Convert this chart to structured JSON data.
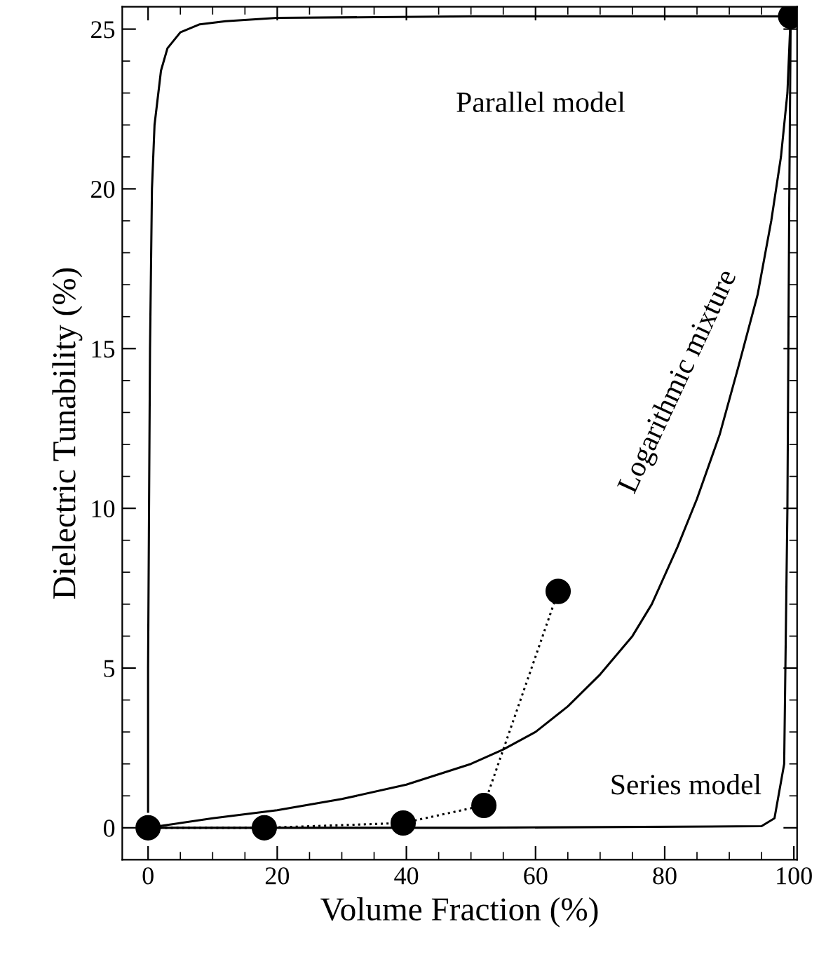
{
  "chart_data": {
    "type": "line",
    "xlabel": "Volume Fraction (%)",
    "ylabel": "Dielectric Tunability (%)",
    "xlim": [
      -4,
      100.5
    ],
    "ylim": [
      -1,
      25.7
    ],
    "xticks": [
      0,
      {
        "value": 5,
        "label": null
      },
      {
        "value": 10,
        "label": null
      },
      {
        "value": 15,
        "label": null
      },
      20,
      {
        "value": 25,
        "label": null
      },
      {
        "value": 30,
        "label": null
      },
      {
        "value": 35,
        "label": null
      },
      40,
      {
        "value": 45,
        "label": null
      },
      {
        "value": 50,
        "label": null
      },
      {
        "value": 55,
        "label": null
      },
      60,
      {
        "value": 65,
        "label": null
      },
      {
        "value": 70,
        "label": null
      },
      {
        "value": 75,
        "label": null
      },
      80,
      {
        "value": 85,
        "label": null
      },
      {
        "value": 90,
        "label": null
      },
      {
        "value": 95,
        "label": null
      },
      100
    ],
    "yticks": [
      0,
      {
        "value": 1,
        "label": null
      },
      {
        "value": 2,
        "label": null
      },
      {
        "value": 3,
        "label": null
      },
      {
        "value": 4,
        "label": null
      },
      5,
      {
        "value": 6,
        "label": null
      },
      {
        "value": 7,
        "label": null
      },
      {
        "value": 8,
        "label": null
      },
      {
        "value": 9,
        "label": null
      },
      10,
      {
        "value": 11,
        "label": null
      },
      {
        "value": 12,
        "label": null
      },
      {
        "value": 13,
        "label": null
      },
      {
        "value": 14,
        "label": null
      },
      15,
      {
        "value": 16,
        "label": null
      },
      {
        "value": 17,
        "label": null
      },
      {
        "value": 18,
        "label": null
      },
      {
        "value": 19,
        "label": null
      },
      20,
      {
        "value": 21,
        "label": null
      },
      {
        "value": 22,
        "label": null
      },
      {
        "value": 23,
        "label": null
      },
      {
        "value": 24,
        "label": null
      },
      25
    ],
    "series": [
      {
        "color": "#000000",
        "line_style": "solid",
        "x": [
          0,
          0,
          0.3,
          0.6,
          1,
          2,
          3,
          5,
          8,
          12,
          20,
          50,
          99
        ],
        "values": [
          0.5,
          5,
          15,
          20,
          22,
          23.7,
          24.4,
          24.9,
          25.15,
          25.25,
          25.35,
          25.4,
          25.4
        ]
      },
      {
        "color": "#000000",
        "line_style": "solid",
        "x": [
          0,
          10,
          20,
          30,
          40,
          50,
          55,
          60,
          65,
          70,
          75,
          78,
          82,
          85,
          88.5,
          91.5,
          94.4,
          96.5,
          98,
          99,
          99.5
        ],
        "values": [
          0,
          0.3,
          0.55,
          0.9,
          1.35,
          2.0,
          2.45,
          3.0,
          3.8,
          4.8,
          6.0,
          7.0,
          8.8,
          10.3,
          12.3,
          14.5,
          16.7,
          19,
          21,
          23,
          25.4
        ]
      },
      {
        "color": "#000000",
        "line_style": "solid",
        "x": [
          0,
          50,
          95,
          97,
          98.5,
          99,
          99.3,
          99.5
        ],
        "values": [
          0,
          0,
          0.05,
          0.3,
          2,
          10,
          20,
          25.2
        ]
      },
      {
        "color": "#000000",
        "line_style": "dotted",
        "marker": "circle",
        "x": [
          0,
          18,
          39.5,
          52,
          63.5
        ],
        "values": [
          0,
          0,
          0.15,
          0.7,
          7.4
        ]
      },
      {
        "color": "#000000",
        "line_style": "none",
        "marker": "circle",
        "x": [
          99.5
        ],
        "values": [
          25.4
        ]
      }
    ],
    "annotations": [
      "Parallel model",
      "Logarithmic mixture",
      "Series model"
    ]
  }
}
